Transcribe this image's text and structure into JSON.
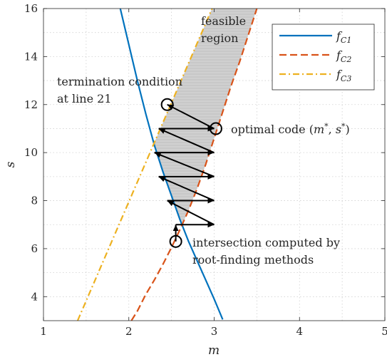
{
  "chart_data": {
    "type": "line",
    "xlabel": "m",
    "ylabel": "s",
    "xlim": [
      1,
      5
    ],
    "ylim": [
      3,
      16
    ],
    "xticks": [
      "1",
      "2",
      "3",
      "4",
      "5"
    ],
    "yticks": [
      "4",
      "6",
      "8",
      "10",
      "12",
      "14",
      "16"
    ],
    "grid": true,
    "legend_position": "top-right",
    "series": [
      {
        "name": "f_C1",
        "legend_main": "f",
        "legend_sub": "C1",
        "color": "#0072BD",
        "style": "solid",
        "x": [
          1.9,
          2.0,
          2.1,
          2.2,
          2.3,
          2.4,
          2.5,
          2.6,
          2.7,
          2.8,
          2.9,
          3.0,
          3.1
        ],
        "y": [
          16.0,
          14.5,
          13.0,
          11.6,
          10.3,
          9.2,
          8.2,
          7.2,
          6.3,
          5.5,
          4.7,
          3.9,
          3.05
        ]
      },
      {
        "name": "f_C2",
        "legend_main": "f",
        "legend_sub": "C2",
        "color": "#D95319",
        "style": "dashed",
        "x": [
          2.03,
          2.1,
          2.2,
          2.3,
          2.4,
          2.5,
          2.6,
          2.7,
          2.8,
          2.9,
          3.0,
          3.1,
          3.2,
          3.3,
          3.4,
          3.5
        ],
        "y": [
          3.0,
          3.4,
          4.1,
          4.7,
          5.35,
          6.05,
          6.8,
          7.6,
          8.5,
          9.5,
          10.6,
          11.7,
          12.8,
          13.8,
          14.9,
          16.0
        ]
      },
      {
        "name": "f_C3",
        "legend_main": "f",
        "legend_sub": "C3",
        "color": "#EDB120",
        "style": "dashdot",
        "x": [
          1.4,
          1.6,
          1.8,
          2.0,
          2.2,
          2.4,
          2.6,
          2.8,
          3.0,
          3.2
        ],
        "y": [
          3.0,
          4.65,
          6.3,
          7.95,
          9.6,
          11.25,
          12.9,
          14.55,
          16.2,
          17.85
        ]
      }
    ],
    "arrows": [
      {
        "x1": 2.55,
        "y1": 6.3,
        "x2": 2.55,
        "y2": 7.0
      },
      {
        "x1": 2.55,
        "y1": 7.0,
        "x2": 3.0,
        "y2": 7.0
      },
      {
        "x1": 3.0,
        "y1": 7.0,
        "x2": 2.45,
        "y2": 8.0
      },
      {
        "x1": 2.45,
        "y1": 8.0,
        "x2": 3.0,
        "y2": 8.0
      },
      {
        "x1": 3.0,
        "y1": 8.0,
        "x2": 2.35,
        "y2": 9.0
      },
      {
        "x1": 2.35,
        "y1": 9.0,
        "x2": 3.0,
        "y2": 9.0
      },
      {
        "x1": 3.0,
        "y1": 9.0,
        "x2": 2.3,
        "y2": 10.0
      },
      {
        "x1": 2.3,
        "y1": 10.0,
        "x2": 3.0,
        "y2": 10.0
      },
      {
        "x1": 3.0,
        "y1": 10.0,
        "x2": 2.35,
        "y2": 11.0
      },
      {
        "x1": 2.35,
        "y1": 11.0,
        "x2": 3.0,
        "y2": 11.0
      },
      {
        "x1": 3.0,
        "y1": 11.0,
        "x2": 2.45,
        "y2": 12.0
      }
    ],
    "markers": [
      {
        "x": 2.45,
        "y": 12.0
      },
      {
        "x": 3.02,
        "y": 11.0
      },
      {
        "x": 2.55,
        "y": 6.3
      }
    ],
    "annotations": {
      "feasible_line1": "feasible",
      "feasible_line2": "region",
      "termination_line1": "termination condition",
      "termination_line2": "at line 21",
      "optimal_text": "optimal code (",
      "optimal_m": "m",
      "optimal_sep": ", ",
      "optimal_s": "s",
      "optimal_star": "*",
      "optimal_close": ")",
      "intersection_line1": "intersection computed by",
      "intersection_line2": "root-finding methods"
    }
  }
}
